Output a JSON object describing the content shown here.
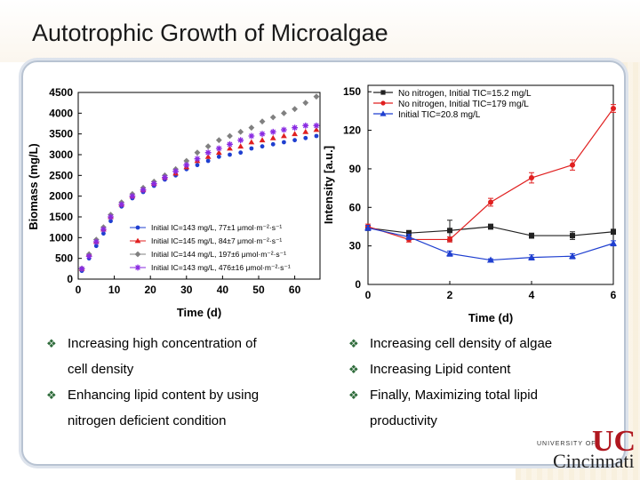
{
  "slide": {
    "title": "Autotrophic Growth of Microalgae"
  },
  "chart_data": [
    {
      "type": "scatter",
      "title": "",
      "xlabel": "Time (d)",
      "ylabel": "Biomass (mg/L)",
      "xlim": [
        0,
        67
      ],
      "ylim": [
        0,
        4500
      ],
      "xticks": [
        "0",
        "10",
        "20",
        "30",
        "40",
        "50",
        "60"
      ],
      "yticks": [
        "0",
        "500",
        "1000",
        "1500",
        "2000",
        "2500",
        "3000",
        "3500",
        "4000",
        "4500"
      ],
      "legend_position": "bottom-right",
      "series": [
        {
          "name": "Initial IC=143 mg/L, 77±1 μmol·m⁻²·s⁻¹",
          "color": "#1f3fd0",
          "marker": "circle",
          "x": [
            1,
            3,
            5,
            7,
            9,
            12,
            15,
            18,
            21,
            24,
            27,
            30,
            33,
            36,
            39,
            42,
            45,
            48,
            51,
            54,
            57,
            60,
            63,
            66
          ],
          "y": [
            200,
            500,
            800,
            1100,
            1400,
            1750,
            1950,
            2100,
            2250,
            2400,
            2500,
            2650,
            2750,
            2850,
            2950,
            3000,
            3050,
            3150,
            3200,
            3250,
            3300,
            3350,
            3400,
            3450
          ]
        },
        {
          "name": "Initial IC=145 mg/L, 84±7 μmol·m⁻²·s⁻¹",
          "color": "#e02020",
          "marker": "triangle",
          "x": [
            1,
            3,
            5,
            7,
            9,
            12,
            15,
            18,
            21,
            24,
            27,
            30,
            33,
            36,
            39,
            42,
            45,
            48,
            51,
            54,
            57,
            60,
            63,
            66
          ],
          "y": [
            250,
            600,
            900,
            1200,
            1500,
            1800,
            2000,
            2150,
            2300,
            2450,
            2550,
            2700,
            2850,
            2950,
            3050,
            3150,
            3200,
            3300,
            3350,
            3400,
            3450,
            3500,
            3550,
            3600
          ]
        },
        {
          "name": "Initial IC=144 mg/L, 197±6 μmol·m⁻²·s⁻¹",
          "color": "#808080",
          "marker": "diamond",
          "x": [
            1,
            3,
            5,
            7,
            9,
            12,
            15,
            18,
            21,
            24,
            27,
            30,
            33,
            36,
            39,
            42,
            45,
            48,
            51,
            54,
            57,
            60,
            63,
            66
          ],
          "y": [
            250,
            600,
            950,
            1250,
            1550,
            1850,
            2050,
            2200,
            2350,
            2500,
            2650,
            2850,
            3050,
            3200,
            3350,
            3450,
            3550,
            3650,
            3800,
            3900,
            4000,
            4100,
            4250,
            4400
          ]
        },
        {
          "name": "Initial IC=143 mg/L, 476±16 μmol·m⁻²·s⁻¹",
          "color": "#8a2be2",
          "marker": "star",
          "x": [
            1,
            3,
            5,
            7,
            9,
            12,
            15,
            18,
            21,
            24,
            27,
            30,
            33,
            36,
            39,
            42,
            45,
            48,
            51,
            54,
            57,
            60,
            63,
            66
          ],
          "y": [
            250,
            550,
            900,
            1200,
            1500,
            1800,
            2000,
            2150,
            2300,
            2450,
            2600,
            2750,
            2900,
            3050,
            3150,
            3250,
            3350,
            3450,
            3500,
            3550,
            3600,
            3650,
            3700,
            3700
          ]
        }
      ]
    },
    {
      "type": "line",
      "title": "",
      "xlabel": "Time (d)",
      "ylabel": "Intensity [a.u.]",
      "xlim": [
        0,
        6
      ],
      "ylim": [
        0,
        155
      ],
      "xticks": [
        "0",
        "2",
        "4",
        "6"
      ],
      "yticks": [
        "0",
        "30",
        "60",
        "90",
        "120",
        "150"
      ],
      "legend_position": "top",
      "series": [
        {
          "name": "No nitrogen, Initial TIC=15.2 mg/L",
          "color": "#222222",
          "marker": "square",
          "x": [
            0,
            1,
            2,
            3,
            4,
            5,
            6
          ],
          "y": [
            44,
            40,
            42,
            45,
            38,
            38,
            41
          ],
          "err": [
            2,
            2,
            8,
            2,
            2,
            3,
            2
          ]
        },
        {
          "name": "No nitrogen, Initial TIC=179 mg/L",
          "color": "#e02020",
          "marker": "circle",
          "x": [
            0,
            1,
            2,
            3,
            4,
            5,
            6
          ],
          "y": [
            45,
            35,
            35,
            64,
            83,
            93,
            137
          ],
          "err": [
            2,
            2,
            2,
            3,
            4,
            4,
            3
          ]
        },
        {
          "name": "Initial TIC=20.8 mg/L",
          "color": "#1f3fd0",
          "marker": "triangle",
          "x": [
            0,
            1,
            2,
            3,
            4,
            5,
            6
          ],
          "y": [
            44,
            37,
            24,
            19,
            21,
            22,
            32
          ],
          "err": [
            2,
            2,
            2,
            1,
            2,
            2,
            2
          ]
        }
      ]
    }
  ],
  "bullets_left": {
    "item1_line1": "Increasing high concentration of",
    "item1_line2": "cell density",
    "item2_line1": "Enhancing lipid content by using",
    "item2_line2": "nitrogen deficient condition"
  },
  "bullets_right": {
    "item1": "Increasing cell density of algae",
    "item2": "Increasing Lipid content",
    "item3_line1": "Finally, Maximizing total lipid",
    "item3_line2": "productivity"
  },
  "bullet_glyph": "❖",
  "logo": {
    "small_text": "UNIVERSITY OF",
    "big_text": "Cincinnati",
    "mark": "UC"
  },
  "colors": {
    "accent_green": "#2e6b3a",
    "logo_red": "#b0171f",
    "panel_border": "#b8c3d2"
  }
}
